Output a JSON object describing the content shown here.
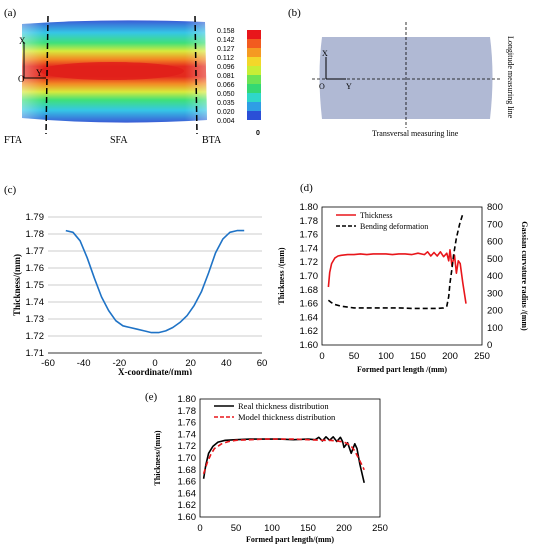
{
  "panel_a": {
    "label": "(a)",
    "axis_x": "X",
    "axis_y": "Y",
    "origin": "O",
    "colorbar_values": [
      "0.158",
      "0.142",
      "0.127",
      "0.112",
      "0.096",
      "0.081",
      "0.066",
      "0.050",
      "0.035",
      "0.020",
      "0.004"
    ],
    "colorbar_zero": "0",
    "regions": [
      "FTA",
      "SFA",
      "BTA"
    ]
  },
  "panel_b": {
    "label": "(b)",
    "axis_x": "X",
    "axis_y": "Y",
    "origin": "O",
    "longitude_label": "Longitude measuring line",
    "transversal_label": "Transversal measuring line"
  },
  "chart_data": [
    {
      "panel": "(c)",
      "type": "line",
      "xlabel": "X-coordinate/(mm)",
      "ylabel": "Thickness/(mm)",
      "xlim": [
        -60,
        60
      ],
      "ylim": [
        1.71,
        1.79
      ],
      "xticks": [
        "-60",
        "-40",
        "-20",
        "0",
        "20",
        "40",
        "60"
      ],
      "yticks": [
        "1.71",
        "1.72",
        "1.73",
        "1.74",
        "1.75",
        "1.76",
        "1.77",
        "1.78",
        "1.79"
      ],
      "grid": true,
      "color": "#1f73c6",
      "x": [
        -50,
        -46,
        -42,
        -38,
        -34,
        -30,
        -26,
        -22,
        -18,
        -14,
        -10,
        -6,
        -2,
        0,
        2,
        6,
        10,
        14,
        18,
        22,
        26,
        30,
        34,
        38,
        42,
        46,
        50
      ],
      "y": [
        1.782,
        1.781,
        1.776,
        1.766,
        1.754,
        1.743,
        1.735,
        1.729,
        1.726,
        1.725,
        1.724,
        1.723,
        1.722,
        1.722,
        1.722,
        1.723,
        1.725,
        1.728,
        1.732,
        1.738,
        1.746,
        1.757,
        1.769,
        1.777,
        1.781,
        1.782,
        1.782
      ]
    },
    {
      "panel": "(d)",
      "type": "line",
      "xlabel": "Formed part length /(mm)",
      "ylabel": "Thickness /(mm)",
      "y2label": "Gassian curvature radius /(mm)",
      "xlim": [
        0,
        250
      ],
      "ylim": [
        1.6,
        1.8
      ],
      "y2lim": [
        0,
        800
      ],
      "xticks": [
        "0",
        "50",
        "100",
        "150",
        "200",
        "250"
      ],
      "yticks": [
        "1.60",
        "1.62",
        "1.64",
        "1.66",
        "1.68",
        "1.70",
        "1.72",
        "1.74",
        "1.76",
        "1.78",
        "1.80"
      ],
      "y2ticks": [
        "0",
        "100",
        "200",
        "300",
        "400",
        "500",
        "600",
        "700",
        "800"
      ],
      "grid": false,
      "legend": "top",
      "series": [
        {
          "name": "Thickness",
          "axis": "left",
          "color": "#e8161b",
          "dash": false,
          "x": [
            10,
            12,
            15,
            20,
            25,
            30,
            40,
            50,
            60,
            70,
            80,
            90,
            100,
            110,
            120,
            130,
            140,
            150,
            160,
            165,
            170,
            175,
            180,
            185,
            190,
            195,
            198,
            200,
            203,
            207,
            210,
            213,
            216,
            220,
            225
          ],
          "y": [
            1.684,
            1.705,
            1.718,
            1.726,
            1.729,
            1.73,
            1.731,
            1.731,
            1.732,
            1.731,
            1.732,
            1.732,
            1.732,
            1.731,
            1.732,
            1.732,
            1.731,
            1.733,
            1.731,
            1.735,
            1.729,
            1.734,
            1.729,
            1.735,
            1.728,
            1.733,
            1.722,
            1.738,
            1.715,
            1.73,
            1.704,
            1.722,
            1.718,
            1.69,
            1.66
          ]
        },
        {
          "name": "Bending deformation",
          "axis": "right",
          "color": "#000000",
          "dash": true,
          "x": [
            10,
            15,
            20,
            30,
            40,
            50,
            60,
            80,
            100,
            120,
            140,
            160,
            180,
            190,
            195,
            198,
            200,
            203,
            206,
            210,
            215,
            220
          ],
          "y": [
            260,
            245,
            235,
            225,
            220,
            215,
            215,
            215,
            215,
            215,
            212,
            212,
            212,
            215,
            225,
            280,
            360,
            440,
            530,
            620,
            700,
            760
          ]
        }
      ]
    },
    {
      "panel": "(e)",
      "type": "line",
      "xlabel": "Formed part length/(mm)",
      "ylabel": "Thickness/(mm)",
      "xlim": [
        0,
        250
      ],
      "ylim": [
        1.6,
        1.8
      ],
      "xticks": [
        "0",
        "50",
        "100",
        "150",
        "200",
        "250"
      ],
      "yticks": [
        "1.60",
        "1.62",
        "1.64",
        "1.66",
        "1.68",
        "1.70",
        "1.72",
        "1.74",
        "1.76",
        "1.78",
        "1.80"
      ],
      "grid": false,
      "legend": "top",
      "series": [
        {
          "name": "Real thickness distribution",
          "color": "#000000",
          "dash": false,
          "x": [
            5,
            8,
            12,
            18,
            25,
            35,
            50,
            70,
            90,
            110,
            130,
            150,
            160,
            165,
            170,
            175,
            180,
            185,
            190,
            195,
            198,
            200,
            205,
            210,
            215,
            218,
            222,
            228
          ],
          "y": [
            1.665,
            1.688,
            1.708,
            1.72,
            1.727,
            1.73,
            1.731,
            1.732,
            1.732,
            1.732,
            1.731,
            1.732,
            1.731,
            1.735,
            1.729,
            1.736,
            1.73,
            1.736,
            1.728,
            1.735,
            1.728,
            1.718,
            1.726,
            1.708,
            1.724,
            1.716,
            1.69,
            1.658
          ]
        },
        {
          "name": "Model thickness distribution",
          "color": "#e8161b",
          "dash": true,
          "x": [
            5,
            10,
            15,
            20,
            30,
            40,
            50,
            70,
            90,
            110,
            130,
            150,
            170,
            180,
            190,
            200,
            205,
            210,
            215,
            220,
            225,
            228
          ],
          "y": [
            1.673,
            1.692,
            1.706,
            1.716,
            1.724,
            1.728,
            1.73,
            1.731,
            1.732,
            1.732,
            1.732,
            1.731,
            1.73,
            1.73,
            1.729,
            1.727,
            1.724,
            1.72,
            1.712,
            1.7,
            1.688,
            1.68
          ]
        }
      ]
    }
  ]
}
